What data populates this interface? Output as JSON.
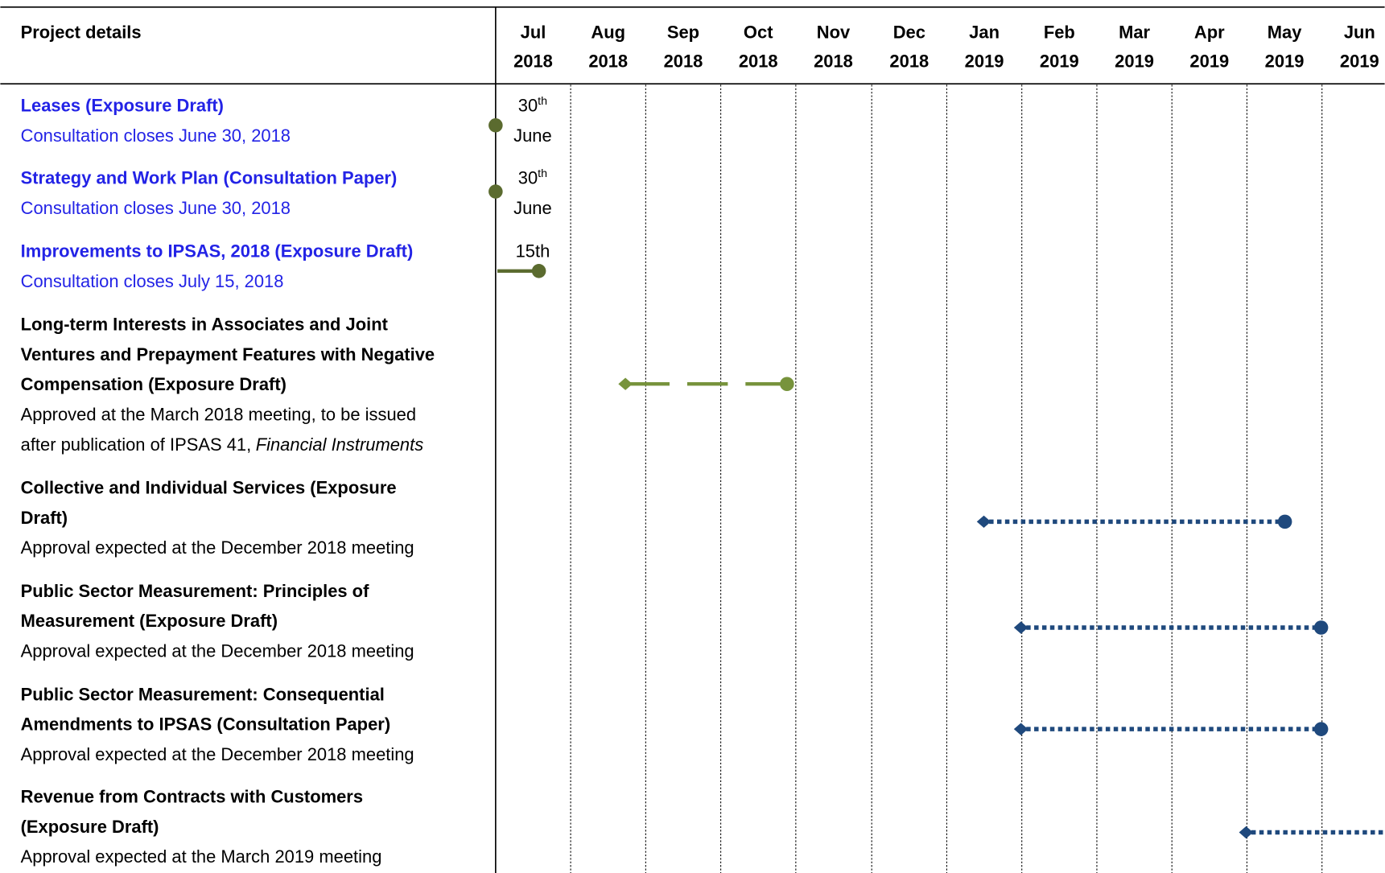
{
  "header": {
    "project_label": "Project details",
    "months": [
      {
        "month": "Jul",
        "year": "2018"
      },
      {
        "month": "Aug",
        "year": "2018"
      },
      {
        "month": "Sep",
        "year": "2018"
      },
      {
        "month": "Oct",
        "year": "2018"
      },
      {
        "month": "Nov",
        "year": "2018"
      },
      {
        "month": "Dec",
        "year": "2018"
      },
      {
        "month": "Jan",
        "year": "2019"
      },
      {
        "month": "Feb",
        "year": "2019"
      },
      {
        "month": "Mar",
        "year": "2019"
      },
      {
        "month": "Apr",
        "year": "2019"
      },
      {
        "month": "May",
        "year": "2019"
      },
      {
        "month": "Jun",
        "year": "2019"
      }
    ]
  },
  "rows": [
    {
      "title_lines": [
        "Leases (Exposure Draft)"
      ],
      "note_lines": [
        "Consultation closes June 30, 2018"
      ],
      "marker": {
        "day": "30",
        "suffix": "th",
        "month": "June"
      }
    },
    {
      "title_lines": [
        "Strategy and Work Plan (Consultation Paper)"
      ],
      "note_lines": [
        "Consultation closes June 30, 2018"
      ],
      "marker": {
        "day": "30",
        "suffix": "th",
        "month": "June"
      }
    },
    {
      "title_lines": [
        "Improvements to IPSAS, 2018 (Exposure Draft)"
      ],
      "note_lines": [
        "Consultation closes July 15, 2018"
      ],
      "marker": {
        "day": "15th"
      }
    },
    {
      "title_lines": [
        "Long-term Interests in Associates and Joint",
        "Ventures and Prepayment Features with Negative",
        "Compensation (Exposure Draft)"
      ],
      "note_lines": [
        "Approved at the March 2018 meeting, to be issued",
        "after publication of IPSAS 41,"
      ],
      "note_italic": "Financial Instruments"
    },
    {
      "title_lines": [
        "Collective and Individual Services (Exposure",
        "Draft)"
      ],
      "note_lines": [
        "Approval expected at the December 2018 meeting"
      ]
    },
    {
      "title_lines": [
        "Public Sector Measurement: Principles of",
        "Measurement (Exposure Draft)"
      ],
      "note_lines": [
        "Approval expected at the December 2018 meeting"
      ]
    },
    {
      "title_lines": [
        "Public Sector Measurement: Consequential",
        "Amendments to IPSAS (Consultation Paper)"
      ],
      "note_lines": [
        "Approval expected at the December 2018 meeting"
      ]
    },
    {
      "title_lines": [
        "Revenue from Contracts with Customers",
        "(Exposure Draft)"
      ],
      "note_lines": [
        "Approval expected at the March 2019 meeting"
      ]
    }
  ]
}
